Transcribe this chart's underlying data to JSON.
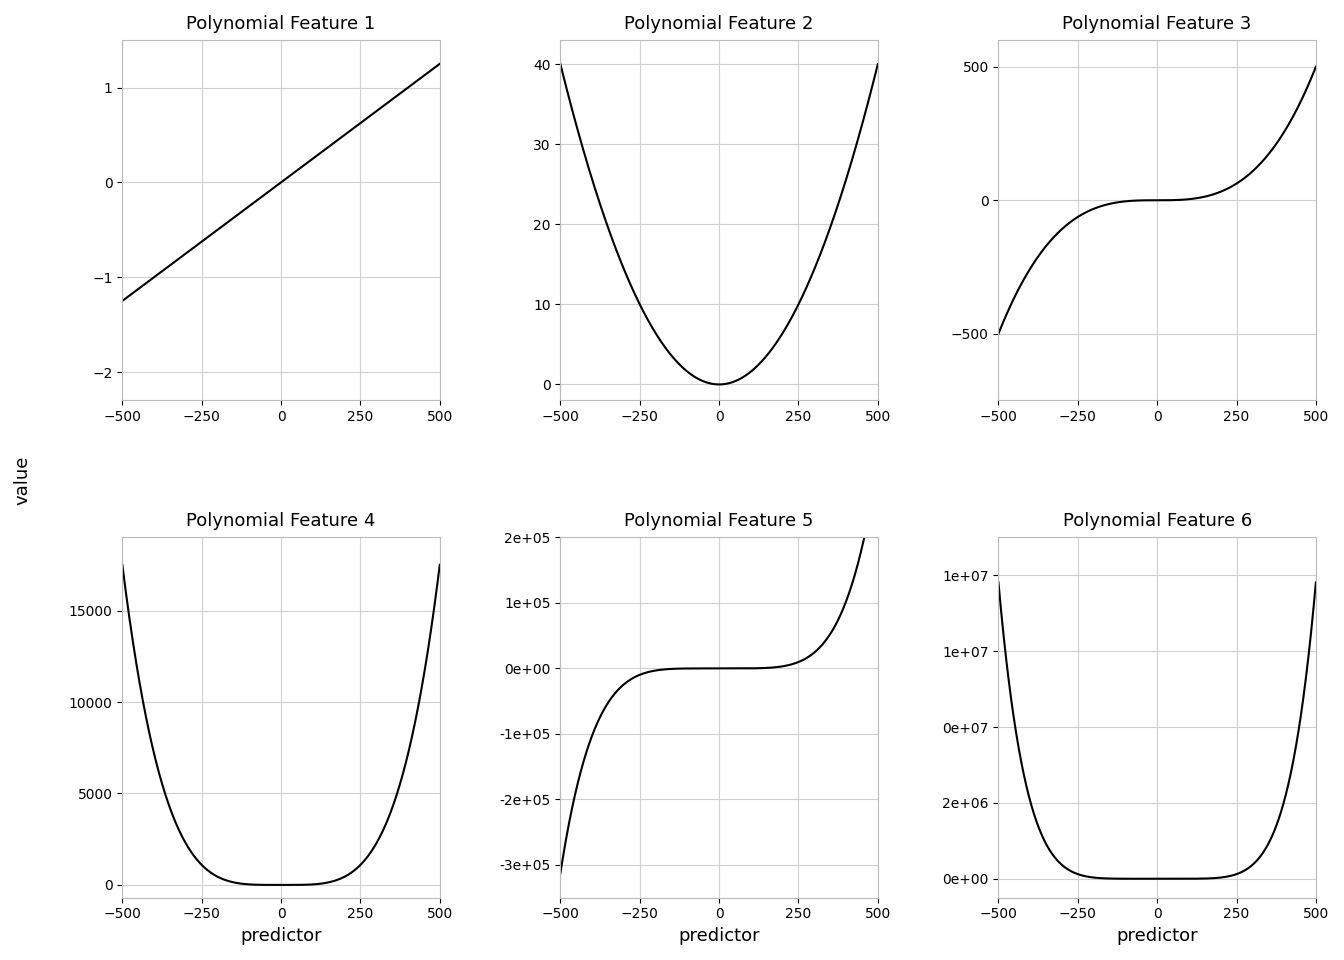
{
  "title_prefix": "Polynomial Feature ",
  "n_features": 6,
  "x_min": -500,
  "x_max": 500,
  "n_points": 1000,
  "xlabel": "predictor",
  "ylabel": "value",
  "background_color": "#ffffff",
  "grid_color": "#d0d0d0",
  "line_color": "#000000",
  "line_width": 1.5,
  "title_fontsize": 13,
  "label_fontsize": 13,
  "tick_fontsize": 10,
  "scales": [
    1.25,
    40.0,
    500.0,
    17500.0,
    312500.0,
    7812500.0
  ]
}
